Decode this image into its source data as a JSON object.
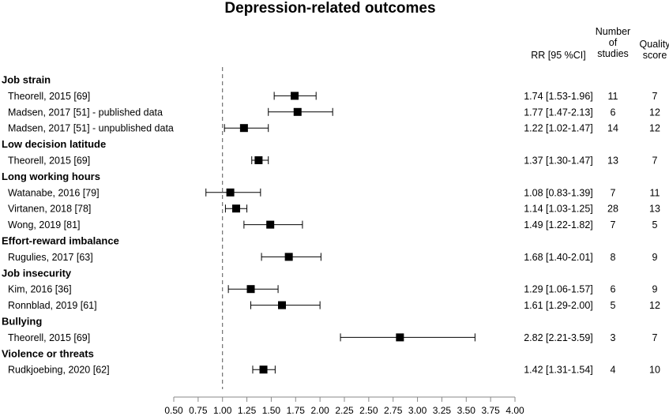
{
  "chart_data": {
    "type": "forest",
    "title": "Depression-related outcomes",
    "column_headers": {
      "rr": "RR [95 %CI]",
      "n_studies": [
        "Number",
        "of",
        "studies"
      ],
      "quality": [
        "Quality",
        "score"
      ]
    },
    "reference_line": 1.0,
    "xlim": [
      0.5,
      4.0
    ],
    "xticks": [
      "0.50",
      "0.75",
      "1.00",
      "1.25",
      "1.50",
      "1.75",
      "2.00",
      "2.25",
      "2.50",
      "2.75",
      "3.00",
      "3.25",
      "3.50",
      "3.75",
      "4.00"
    ],
    "groups": [
      {
        "name": "Job strain",
        "studies": [
          {
            "label": "Theorell, 2015 [69]",
            "rr": 1.74,
            "lo": 1.53,
            "hi": 1.96,
            "ci_text": "1.74 [1.53-1.96]",
            "n": "11",
            "quality": "7"
          },
          {
            "label": "Madsen, 2017 [51] - published data",
            "rr": 1.77,
            "lo": 1.47,
            "hi": 2.13,
            "ci_text": "1.77 [1.47-2.13]",
            "n": "6",
            "quality": "12"
          },
          {
            "label": "Madsen, 2017 [51] - unpublished data",
            "rr": 1.22,
            "lo": 1.02,
            "hi": 1.47,
            "ci_text": "1.22 [1.02-1.47]",
            "n": "14",
            "quality": "12"
          }
        ]
      },
      {
        "name": "Low decision latitude",
        "studies": [
          {
            "label": "Theorell, 2015 [69]",
            "rr": 1.37,
            "lo": 1.3,
            "hi": 1.47,
            "ci_text": "1.37 [1.30-1.47]",
            "n": "13",
            "quality": "7"
          }
        ]
      },
      {
        "name": "Long working hours",
        "studies": [
          {
            "label": "Watanabe, 2016 [79]",
            "rr": 1.08,
            "lo": 0.83,
            "hi": 1.39,
            "ci_text": "1.08 [0.83-1.39]",
            "n": "7",
            "quality": "11"
          },
          {
            "label": "Virtanen, 2018 [78]",
            "rr": 1.14,
            "lo": 1.03,
            "hi": 1.25,
            "ci_text": "1.14 [1.03-1.25]",
            "n": "28",
            "quality": "13"
          },
          {
            "label": "Wong, 2019 [81]",
            "rr": 1.49,
            "lo": 1.22,
            "hi": 1.82,
            "ci_text": "1.49 [1.22-1.82]",
            "n": "7",
            "quality": "5"
          }
        ]
      },
      {
        "name": "Effort-reward imbalance",
        "studies": [
          {
            "label": "Rugulies, 2017 [63]",
            "rr": 1.68,
            "lo": 1.4,
            "hi": 2.01,
            "ci_text": "1.68 [1.40-2.01]",
            "n": "8",
            "quality": "9"
          }
        ]
      },
      {
        "name": "Job insecurity",
        "studies": [
          {
            "label": "Kim, 2016 [36]",
            "rr": 1.29,
            "lo": 1.06,
            "hi": 1.57,
            "ci_text": "1.29 [1.06-1.57]",
            "n": "6",
            "quality": "9"
          },
          {
            "label": "Ronnblad, 2019 [61]",
            "rr": 1.61,
            "lo": 1.29,
            "hi": 2.0,
            "ci_text": "1.61 [1.29-2.00]",
            "n": "5",
            "quality": "12"
          }
        ]
      },
      {
        "name": "Bullying",
        "studies": [
          {
            "label": "Theorell, 2015 [69]",
            "rr": 2.82,
            "lo": 2.21,
            "hi": 3.59,
            "ci_text": "2.82 [2.21-3.59]",
            "n": "3",
            "quality": "7"
          }
        ]
      },
      {
        "name": "Violence or threats",
        "studies": [
          {
            "label": "Rudkjoebing, 2020 [62]",
            "rr": 1.42,
            "lo": 1.31,
            "hi": 1.54,
            "ci_text": "1.42 [1.31-1.54]",
            "n": "4",
            "quality": "10"
          }
        ]
      }
    ]
  }
}
